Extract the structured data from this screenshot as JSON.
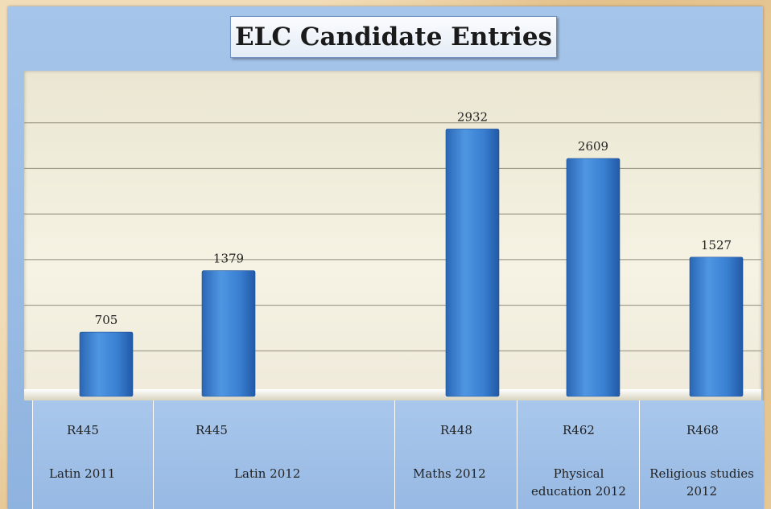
{
  "chart_data": {
    "type": "bar",
    "title": "ELC Candidate Entries",
    "categories": [
      {
        "code": "R445",
        "name": "Latin 2011"
      },
      {
        "code": "R445",
        "name": "Latin 2012"
      },
      {
        "code": "R448",
        "name": "Maths 2012"
      },
      {
        "code": "R462",
        "name": "Physical education 2012"
      },
      {
        "code": "R468",
        "name": "Religious studies 2012"
      }
    ],
    "series": [
      {
        "values": [
          705,
          1379,
          2932,
          2609,
          1527
        ]
      }
    ],
    "data_labels": [
      "705",
      "1379",
      "2932",
      "2609",
      "1527"
    ],
    "ylim": [
      0,
      3500
    ],
    "grid": true,
    "bar_color": "#3a7fd0"
  }
}
